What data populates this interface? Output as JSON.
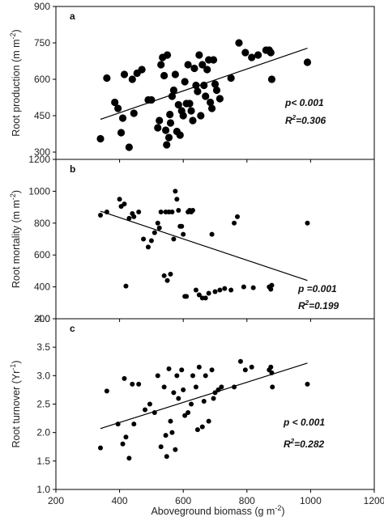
{
  "chart_data": [
    {
      "type": "scatter",
      "panel_label": "a",
      "ylabel": "Root production (m m",
      "ylabel_exponent": "-2",
      "ylabel_close": ")",
      "ylim": [
        270,
        900
      ],
      "yticks": [
        300,
        450,
        600,
        750,
        900
      ],
      "xlim": [
        200,
        1200
      ],
      "grid": false,
      "marker_size": "large",
      "stats": {
        "p_text": "p< 0.001",
        "r2_prefix": "R",
        "r2_sup": "2",
        "r2_value": "=0.306"
      },
      "fit_line": [
        [
          340,
          435
        ],
        [
          990,
          728
        ]
      ],
      "points": [
        [
          340,
          355
        ],
        [
          360,
          605
        ],
        [
          385,
          505
        ],
        [
          395,
          480
        ],
        [
          405,
          380
        ],
        [
          410,
          440
        ],
        [
          415,
          620
        ],
        [
          430,
          320
        ],
        [
          440,
          600
        ],
        [
          445,
          460
        ],
        [
          455,
          625
        ],
        [
          470,
          640
        ],
        [
          490,
          515
        ],
        [
          500,
          515
        ],
        [
          520,
          400
        ],
        [
          525,
          430
        ],
        [
          530,
          660
        ],
        [
          535,
          690
        ],
        [
          540,
          615
        ],
        [
          545,
          390
        ],
        [
          548,
          330
        ],
        [
          550,
          700
        ],
        [
          555,
          360
        ],
        [
          558,
          455
        ],
        [
          560,
          420
        ],
        [
          565,
          530
        ],
        [
          570,
          555
        ],
        [
          575,
          620
        ],
        [
          580,
          385
        ],
        [
          585,
          495
        ],
        [
          590,
          370
        ],
        [
          595,
          470
        ],
        [
          600,
          450
        ],
        [
          605,
          590
        ],
        [
          610,
          500
        ],
        [
          615,
          660
        ],
        [
          620,
          500
        ],
        [
          625,
          470
        ],
        [
          630,
          430
        ],
        [
          635,
          645
        ],
        [
          640,
          575
        ],
        [
          645,
          550
        ],
        [
          650,
          700
        ],
        [
          655,
          450
        ],
        [
          660,
          660
        ],
        [
          665,
          575
        ],
        [
          670,
          530
        ],
        [
          675,
          640
        ],
        [
          680,
          680
        ],
        [
          685,
          505
        ],
        [
          690,
          480
        ],
        [
          695,
          680
        ],
        [
          700,
          580
        ],
        [
          705,
          555
        ],
        [
          715,
          520
        ],
        [
          750,
          605
        ],
        [
          775,
          750
        ],
        [
          795,
          710
        ],
        [
          815,
          690
        ],
        [
          835,
          700
        ],
        [
          860,
          720
        ],
        [
          870,
          720
        ],
        [
          875,
          710
        ],
        [
          878,
          600
        ],
        [
          990,
          670
        ]
      ]
    },
    {
      "type": "scatter",
      "panel_label": "b",
      "ylabel": "Root mortality (m m",
      "ylabel_exponent": "-2",
      "ylabel_close": ")",
      "ylim": [
        200,
        1200
      ],
      "yticks": [
        200,
        400,
        600,
        800,
        1000,
        1200
      ],
      "xlim": [
        200,
        1200
      ],
      "grid": false,
      "marker_size": "small",
      "stats": {
        "p_text": "p =0.001",
        "r2_prefix": "R",
        "r2_sup": "2",
        "r2_value": "=0.199"
      },
      "fit_line": [
        [
          340,
          875
        ],
        [
          990,
          440
        ]
      ],
      "points": [
        [
          340,
          850
        ],
        [
          360,
          870
        ],
        [
          400,
          950
        ],
        [
          405,
          905
        ],
        [
          415,
          920
        ],
        [
          420,
          405
        ],
        [
          430,
          830
        ],
        [
          440,
          860
        ],
        [
          445,
          840
        ],
        [
          460,
          870
        ],
        [
          475,
          700
        ],
        [
          490,
          650
        ],
        [
          500,
          690
        ],
        [
          510,
          740
        ],
        [
          520,
          800
        ],
        [
          525,
          770
        ],
        [
          530,
          870
        ],
        [
          540,
          470
        ],
        [
          545,
          870
        ],
        [
          550,
          440
        ],
        [
          555,
          870
        ],
        [
          560,
          480
        ],
        [
          565,
          870
        ],
        [
          570,
          700
        ],
        [
          575,
          1000
        ],
        [
          580,
          950
        ],
        [
          585,
          880
        ],
        [
          590,
          780
        ],
        [
          595,
          780
        ],
        [
          600,
          730
        ],
        [
          605,
          340
        ],
        [
          610,
          340
        ],
        [
          615,
          870
        ],
        [
          620,
          880
        ],
        [
          625,
          870
        ],
        [
          630,
          880
        ],
        [
          640,
          380
        ],
        [
          650,
          350
        ],
        [
          660,
          330
        ],
        [
          670,
          330
        ],
        [
          680,
          360
        ],
        [
          690,
          730
        ],
        [
          700,
          370
        ],
        [
          715,
          380
        ],
        [
          730,
          390
        ],
        [
          750,
          380
        ],
        [
          760,
          800
        ],
        [
          770,
          840
        ],
        [
          790,
          400
        ],
        [
          820,
          395
        ],
        [
          870,
          400
        ],
        [
          875,
          385
        ],
        [
          878,
          410
        ],
        [
          990,
          800
        ]
      ]
    },
    {
      "type": "scatter",
      "panel_label": "c",
      "ylabel": "Root turnover (Yr",
      "ylabel_exponent": "-1",
      "ylabel_close": ")",
      "xlabel": "Aboveground biomass (g m",
      "xlabel_exponent": "-2",
      "xlabel_close": ")",
      "ylim": [
        1.0,
        4.0
      ],
      "yticks": [
        1.0,
        1.5,
        2.0,
        2.5,
        3.0,
        3.5,
        4.0
      ],
      "xlim": [
        200,
        1200
      ],
      "xticks": [
        200,
        400,
        600,
        800,
        1000,
        1200
      ],
      "grid": false,
      "marker_size": "small",
      "stats": {
        "p_text": "p < 0.001",
        "r2_prefix": "R",
        "r2_sup": "2",
        "r2_value": "=0.282"
      },
      "fit_line": [
        [
          340,
          2.07
        ],
        [
          990,
          3.22
        ]
      ],
      "points": [
        [
          340,
          1.73
        ],
        [
          360,
          2.73
        ],
        [
          395,
          2.15
        ],
        [
          410,
          1.8
        ],
        [
          415,
          2.95
        ],
        [
          420,
          1.92
        ],
        [
          430,
          1.55
        ],
        [
          440,
          2.85
        ],
        [
          445,
          2.15
        ],
        [
          460,
          2.85
        ],
        [
          480,
          2.4
        ],
        [
          495,
          2.5
        ],
        [
          510,
          2.35
        ],
        [
          520,
          3.0
        ],
        [
          530,
          1.75
        ],
        [
          540,
          2.8
        ],
        [
          545,
          1.95
        ],
        [
          548,
          1.58
        ],
        [
          555,
          3.12
        ],
        [
          560,
          2.2
        ],
        [
          565,
          2.0
        ],
        [
          570,
          2.7
        ],
        [
          575,
          1.7
        ],
        [
          580,
          3.0
        ],
        [
          585,
          2.6
        ],
        [
          595,
          3.1
        ],
        [
          600,
          2.75
        ],
        [
          605,
          2.3
        ],
        [
          615,
          2.35
        ],
        [
          625,
          2.5
        ],
        [
          630,
          3.0
        ],
        [
          640,
          2.8
        ],
        [
          645,
          2.05
        ],
        [
          650,
          3.15
        ],
        [
          660,
          2.1
        ],
        [
          665,
          2.55
        ],
        [
          670,
          3.0
        ],
        [
          680,
          2.2
        ],
        [
          690,
          3.1
        ],
        [
          695,
          2.6
        ],
        [
          700,
          2.7
        ],
        [
          710,
          2.75
        ],
        [
          720,
          2.8
        ],
        [
          760,
          2.8
        ],
        [
          780,
          3.25
        ],
        [
          795,
          3.1
        ],
        [
          815,
          3.15
        ],
        [
          870,
          3.1
        ],
        [
          875,
          3.15
        ],
        [
          878,
          3.05
        ],
        [
          880,
          2.8
        ],
        [
          990,
          2.85
        ]
      ]
    }
  ]
}
